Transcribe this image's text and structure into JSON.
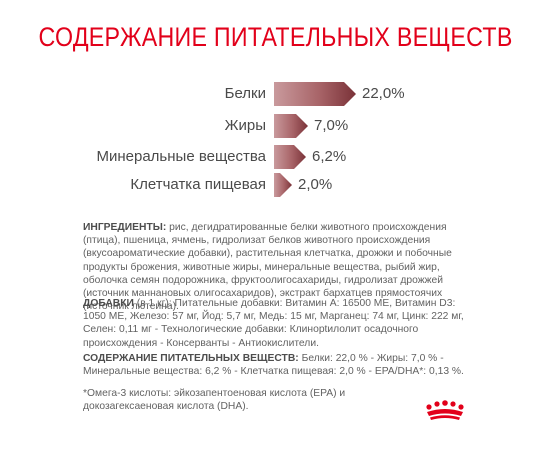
{
  "title": "СОДЕРЖАНИЕ ПИТАТЕЛЬНЫХ ВЕЩЕСТВ",
  "nutrients": [
    {
      "name": "Белки",
      "value": "22,0%",
      "percent": 22.0
    },
    {
      "name": "Жиры",
      "value": "7,0%",
      "percent": 7.0
    },
    {
      "name": "Минеральные вещества",
      "value": "6,2%",
      "percent": 6.2
    },
    {
      "name": "Клетчатка пищевая",
      "value": "2,0%",
      "percent": 2.0
    }
  ],
  "colors": {
    "title": "#e2001a",
    "bar_dark": "#7a3238",
    "bar_light": "#c99a9d",
    "text": "#626262",
    "logo": "#e2001a"
  },
  "ingredients": {
    "label": "ИНГРЕДИЕНТЫ:",
    "text": " рис, дегидратированные белки животного происхождения (птица), пшеница, ячмень, гидролизат белков животного происхождения (вкусоароматические добавки), растительная клетчатка, дрожжи и побочные продукты брожения, животные жиры, минеральные вещества, рыбий жир, оболочка семян подорожника, фруктоолигосахариды, гидролизат дрожжей (источник маннановых олигосахаридов), экстракт бархатцев прямостоячих (источник лютеина)."
  },
  "additives": {
    "label": "ДОБАВКИ",
    "text": " (в 1 кг): Питательные добавки: Витамин A: 16500 МЕ, Витамин D3: 1050 МЕ, Железо: 57 мг, Йод: 5,7 мг, Медь: 15 мг, Марганец: 74 мг, Цинк: 222 мг, Селен: 0,11 мг - Технологические добавки: Клинoptилолит осадочного происхождения - Консерванты - Антиокислители."
  },
  "composition": {
    "label": "СОДЕРЖАНИЕ ПИТАТЕЛЬНЫХ ВЕЩЕСТВ:",
    "text": " Белки: 22,0 % - Жиры: 7,0 % - Минеральные вещества: 6,2 % - Клетчатка пищевая: 2,0 % - EPA/DHA*: 0,13 %."
  },
  "footnote": "*Омега-3 кислоты: эйкозапентоеновая кислота (EPA) и докозагексаеновая кислота (DHA).",
  "logo_icon": "royal-canin-crown-icon"
}
